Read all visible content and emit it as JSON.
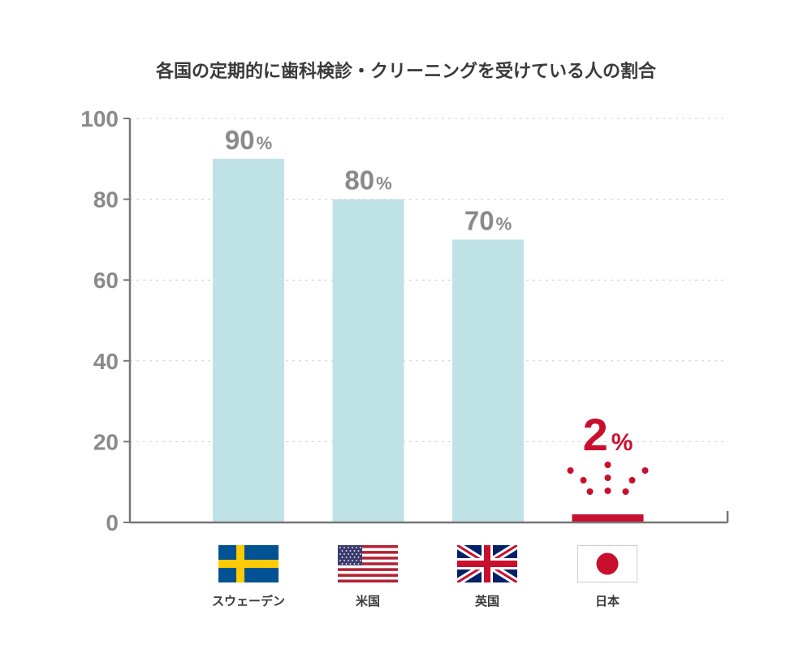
{
  "chart_data": {
    "type": "bar",
    "title": "各国の定期的に歯科検診・クリーニングを受けている人の割合",
    "xlabel": "",
    "ylabel": "",
    "ylim": [
      0,
      100
    ],
    "yticks": [
      0,
      20,
      40,
      60,
      80,
      100
    ],
    "grid": true,
    "categories": [
      "スウェーデン",
      "米国",
      "英国",
      "日本"
    ],
    "values": [
      90,
      80,
      70,
      2
    ],
    "data_labels": [
      {
        "number": "90",
        "unit": "%"
      },
      {
        "number": "80",
        "unit": "%"
      },
      {
        "number": "70",
        "unit": "%"
      },
      {
        "number": "2",
        "unit": "%"
      }
    ],
    "highlight_index": 3
  },
  "colors": {
    "bar": "#bfe2e7",
    "highlight": "#c8102e",
    "axis": "#777777",
    "tick_label": "#8a8a8a",
    "value_label": "#8a8a8a",
    "grid": "#d0d0d0"
  },
  "flags": [
    "sweden-flag-icon",
    "usa-flag-icon",
    "uk-flag-icon",
    "japan-flag-icon"
  ]
}
